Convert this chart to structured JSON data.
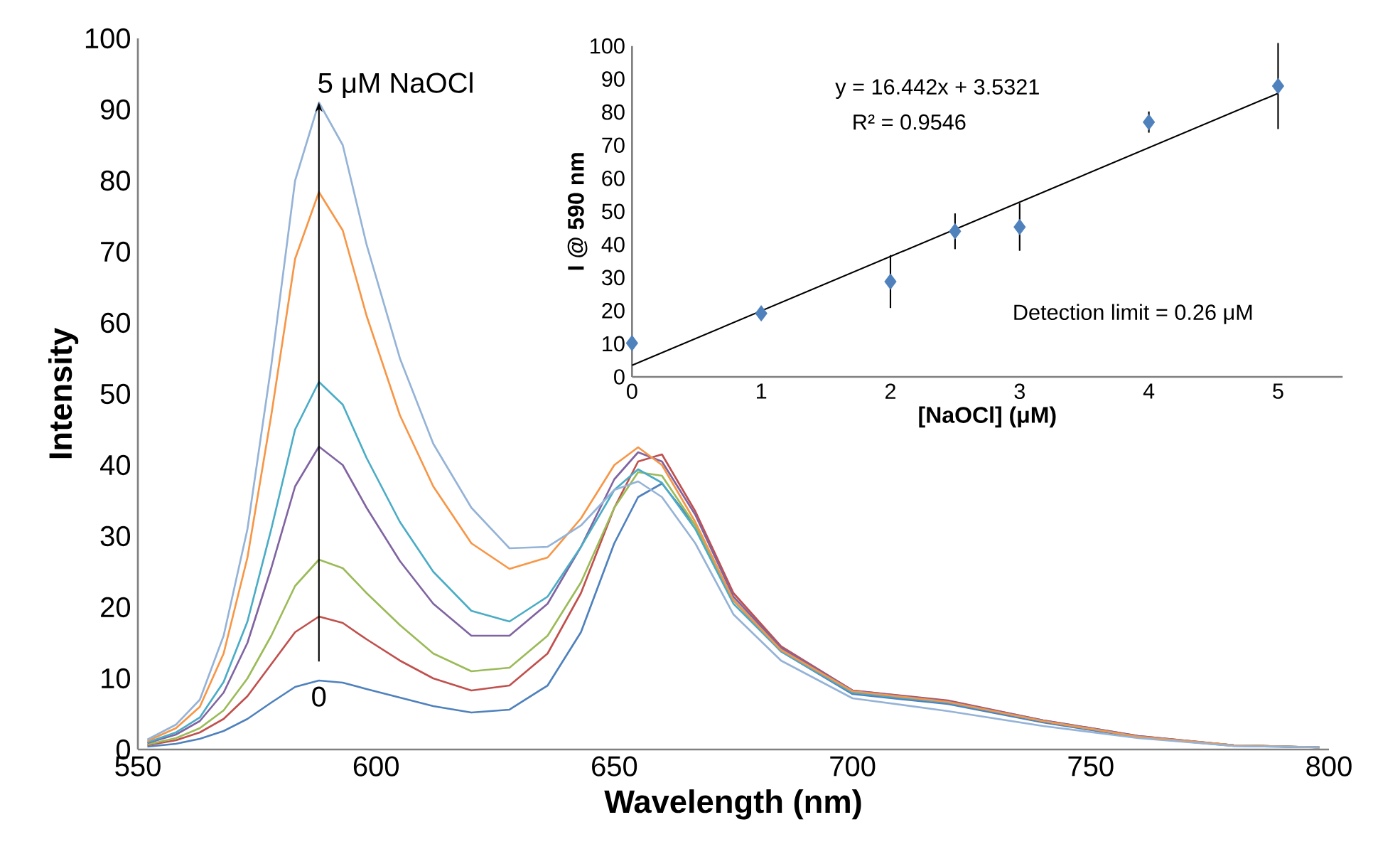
{
  "chart_data": [
    {
      "type": "line",
      "xlabel": "Wavelength (nm)",
      "ylabel": "Intensity",
      "xlim": [
        550,
        800
      ],
      "xticks": [
        550,
        600,
        650,
        700,
        750,
        800
      ],
      "ylim": [
        0,
        100
      ],
      "yticks": [
        0,
        10,
        20,
        30,
        40,
        50,
        60,
        70,
        80,
        90,
        100
      ],
      "x": [
        552,
        558,
        563,
        568,
        573,
        578,
        583,
        588,
        593,
        598,
        605,
        612,
        620,
        628,
        636,
        643,
        650,
        655,
        660,
        667,
        675,
        685,
        700,
        720,
        740,
        760,
        780,
        798
      ],
      "series": [
        {
          "color": "#4f81bd",
          "values": [
            0.4,
            0.8,
            1.5,
            2.6,
            4.3,
            6.6,
            8.8,
            9.7,
            9.4,
            8.5,
            7.3,
            6.1,
            5.2,
            5.6,
            9,
            16.5,
            29,
            35.5,
            37.4,
            31.5,
            21,
            13.8,
            7.8,
            6.4,
            3.8,
            1.7,
            0.5,
            0.3
          ]
        },
        {
          "color": "#c0504d",
          "values": [
            0.6,
            1.3,
            2.4,
            4.3,
            7.5,
            12,
            16.5,
            18.7,
            17.8,
            15.5,
            12.5,
            10,
            8.3,
            9,
            13.5,
            22,
            34,
            40.5,
            41.5,
            33.5,
            22,
            14.5,
            8.3,
            6.9,
            4.1,
            1.9,
            0.6,
            0.3
          ]
        },
        {
          "color": "#9bbb59",
          "values": [
            0.7,
            1.6,
            3,
            5.5,
            10,
            16,
            23,
            26.7,
            25.5,
            22,
            17.5,
            13.5,
            11,
            11.5,
            16,
            23.5,
            34,
            39,
            38.5,
            31.5,
            21,
            14,
            8.1,
            6.7,
            4,
            1.8,
            0.6,
            0.3
          ]
        },
        {
          "color": "#8064a2",
          "values": [
            0.9,
            2.1,
            4,
            8,
            15,
            25.5,
            37,
            42.6,
            40,
            34,
            26.5,
            20.5,
            16,
            16,
            20.5,
            28.5,
            38,
            41.8,
            40.5,
            33,
            21.5,
            14.3,
            8.3,
            6.8,
            4.1,
            1.9,
            0.6,
            0.3
          ]
        },
        {
          "color": "#4bacc6",
          "values": [
            1.0,
            2.4,
            4.5,
            9.5,
            18,
            31,
            45,
            51.7,
            48.5,
            41,
            32,
            25,
            19.5,
            18,
            21.5,
            28.5,
            36.5,
            39.4,
            37.5,
            31,
            20.5,
            13.8,
            8.0,
            6.6,
            4,
            1.8,
            0.6,
            0.3
          ]
        },
        {
          "color": "#f79646",
          "values": [
            1.2,
            3,
            6,
            13.5,
            27,
            47,
            69,
            78.4,
            73,
            61,
            47,
            37,
            29,
            25.4,
            27,
            32.5,
            40,
            42.5,
            40,
            32,
            21,
            14,
            8.2,
            6.7,
            4,
            1.8,
            0.6,
            0.3
          ]
        },
        {
          "color": "#95b3d7",
          "values": [
            1.4,
            3.5,
            7,
            16,
            31,
            54,
            80,
            91,
            85,
            71,
            55,
            43,
            34,
            28.3,
            28.5,
            31.5,
            36.5,
            37.7,
            35.5,
            29,
            19,
            12.5,
            7.2,
            5.4,
            3.3,
            1.6,
            0.5,
            0.3
          ]
        }
      ],
      "annotations": [
        {
          "text": "5 μM NaOCl",
          "x": 588,
          "y": 91
        },
        {
          "text": "0",
          "x": 588,
          "y": 9.7
        }
      ]
    },
    {
      "type": "scatter",
      "xlabel": "[NaOCl] (μM)",
      "ylabel": "I @ 590 nm",
      "xlim": [
        0,
        5.5
      ],
      "xticks": [
        0,
        1,
        2,
        3,
        4,
        5
      ],
      "ylim": [
        0,
        100
      ],
      "yticks": [
        0,
        10,
        20,
        30,
        40,
        50,
        60,
        70,
        80,
        90,
        100
      ],
      "x": [
        0,
        1,
        2,
        2.5,
        3,
        4,
        5
      ],
      "series": [
        {
          "color": "#4f81bd",
          "marker": "diamond",
          "values": [
            10.2,
            19.2,
            28.8,
            44.0,
            45.3,
            77.0,
            87.9
          ],
          "errors": [
            null,
            null,
            8,
            5.4,
            7.2,
            3.2,
            13
          ]
        },
        {
          "type": "line",
          "color": "#000000",
          "x": [
            0,
            5
          ],
          "values": [
            3.5,
            85.7
          ]
        }
      ],
      "annotations": [
        "y = 16.442x + 3.5321",
        "R² = 0.9546",
        "Detection limit = 0.26 μM"
      ]
    }
  ]
}
